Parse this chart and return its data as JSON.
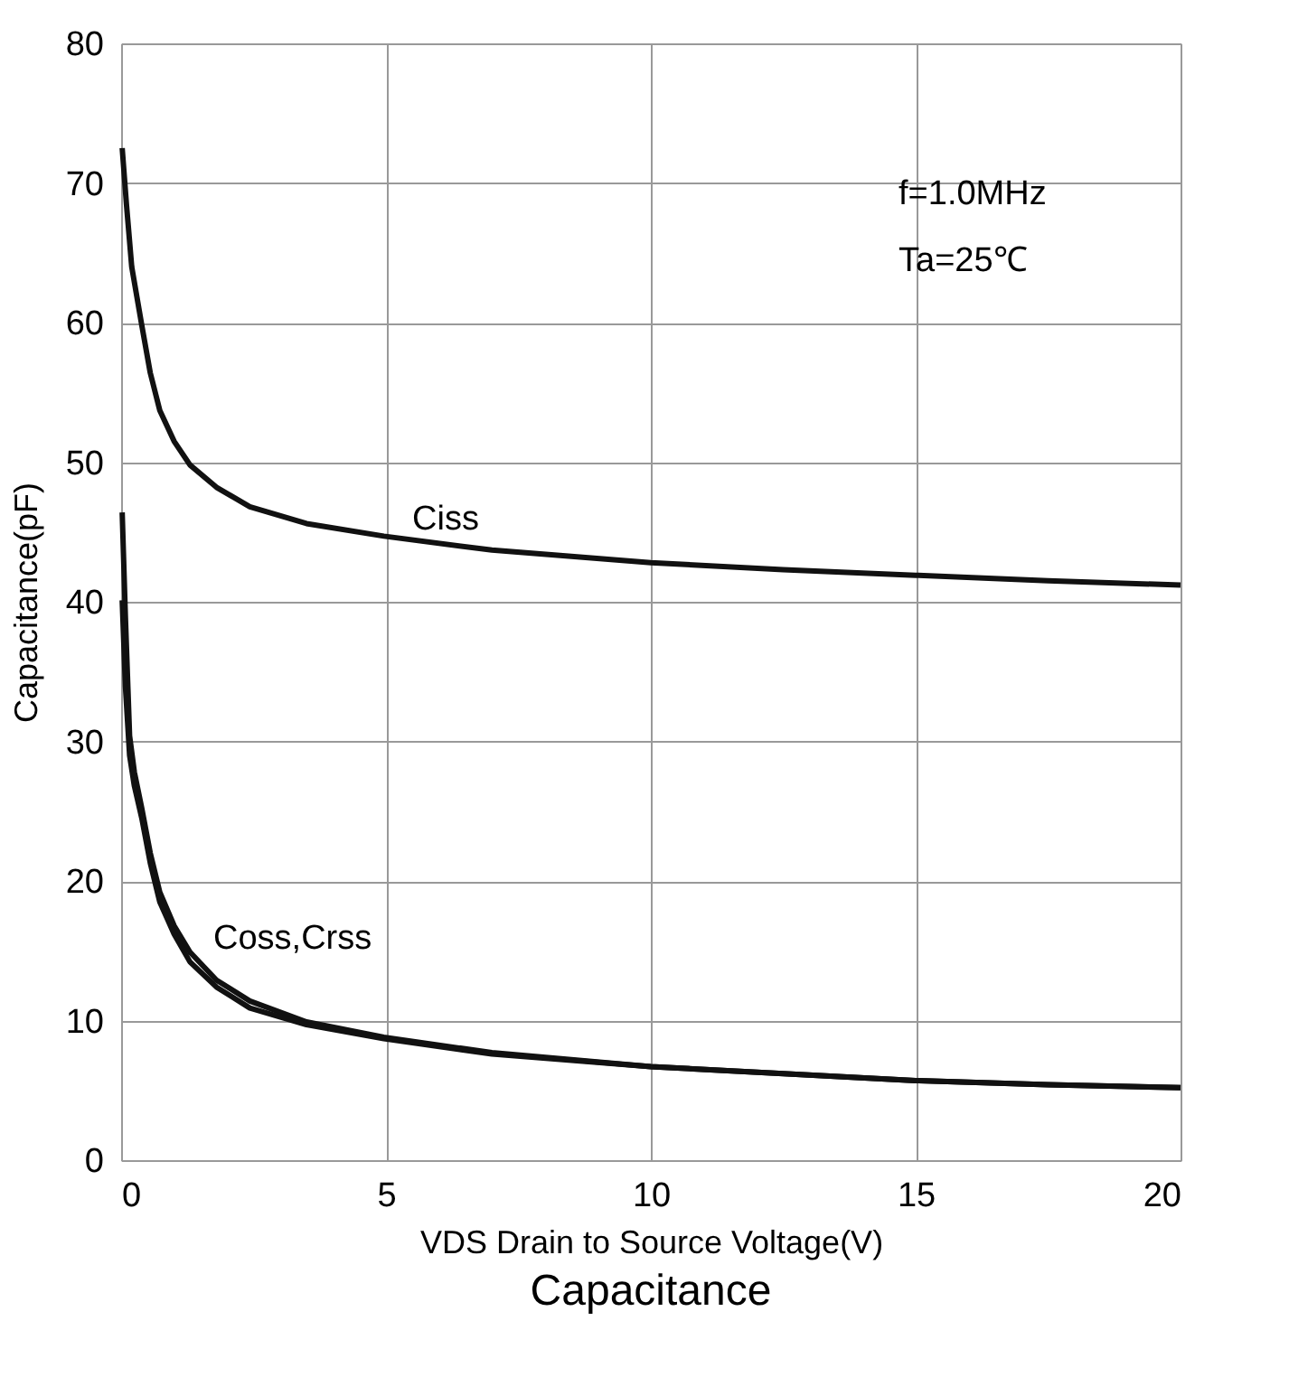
{
  "chart_data": {
    "type": "line",
    "title": "Capacitance",
    "xlabel": "VDS Drain  to Source Voltage(V)",
    "ylabel": "Capacitance(pF)",
    "xlim": [
      0,
      20
    ],
    "xticks": [
      0,
      5,
      10,
      15,
      20
    ],
    "ylim": [
      0,
      80
    ],
    "yticks": [
      0,
      10,
      20,
      30,
      40,
      50,
      60,
      70,
      80
    ],
    "grid": true,
    "line_style": "solid",
    "marker": "none",
    "series": [
      {
        "color": "#111111",
        "x": [
          0.02,
          0.1,
          0.2,
          0.39,
          0.55,
          0.73,
          1.0,
          1.3,
          1.8,
          2.43,
          3.5,
          4.96,
          7.0,
          10,
          12.5,
          15,
          17.5,
          20
        ],
        "values": [
          72.5,
          68.5,
          64.0,
          59.8,
          56.4,
          53.7,
          51.5,
          49.8,
          48.2,
          46.8,
          45.6,
          44.7,
          43.7,
          42.8,
          42.3,
          41.9,
          41.5,
          41.2
        ]
      },
      {
        "color": "#111111",
        "x": [
          0.02,
          0.08,
          0.16,
          0.25,
          0.39,
          0.55,
          0.73,
          1.0,
          1.3,
          1.8,
          2.43,
          3.5,
          4.96,
          7.0,
          10,
          12.5,
          15,
          17.5,
          20
        ],
        "values": [
          46.4,
          39.0,
          30.4,
          27.8,
          25.2,
          22.0,
          19.2,
          16.8,
          14.9,
          12.9,
          11.4,
          9.9,
          8.8,
          7.7,
          6.7,
          6.2,
          5.7,
          5.4,
          5.2
        ]
      },
      {
        "color": "#111111",
        "x": [
          0.02,
          0.08,
          0.16,
          0.25,
          0.39,
          0.55,
          0.73,
          1.0,
          1.3,
          1.8,
          2.43,
          3.5,
          4.96,
          7.0,
          10,
          12.5,
          15,
          17.5,
          20
        ],
        "values": [
          40.1,
          34.0,
          29.0,
          26.8,
          24.5,
          21.3,
          18.5,
          16.2,
          14.2,
          12.4,
          10.9,
          9.7,
          8.7,
          7.6,
          6.7,
          6.2,
          5.7,
          5.4,
          5.2
        ]
      }
    ],
    "annotations": [
      "Ciss",
      "Coss,Crss",
      "f=1.0MHz",
      "Ta=25℃"
    ]
  }
}
